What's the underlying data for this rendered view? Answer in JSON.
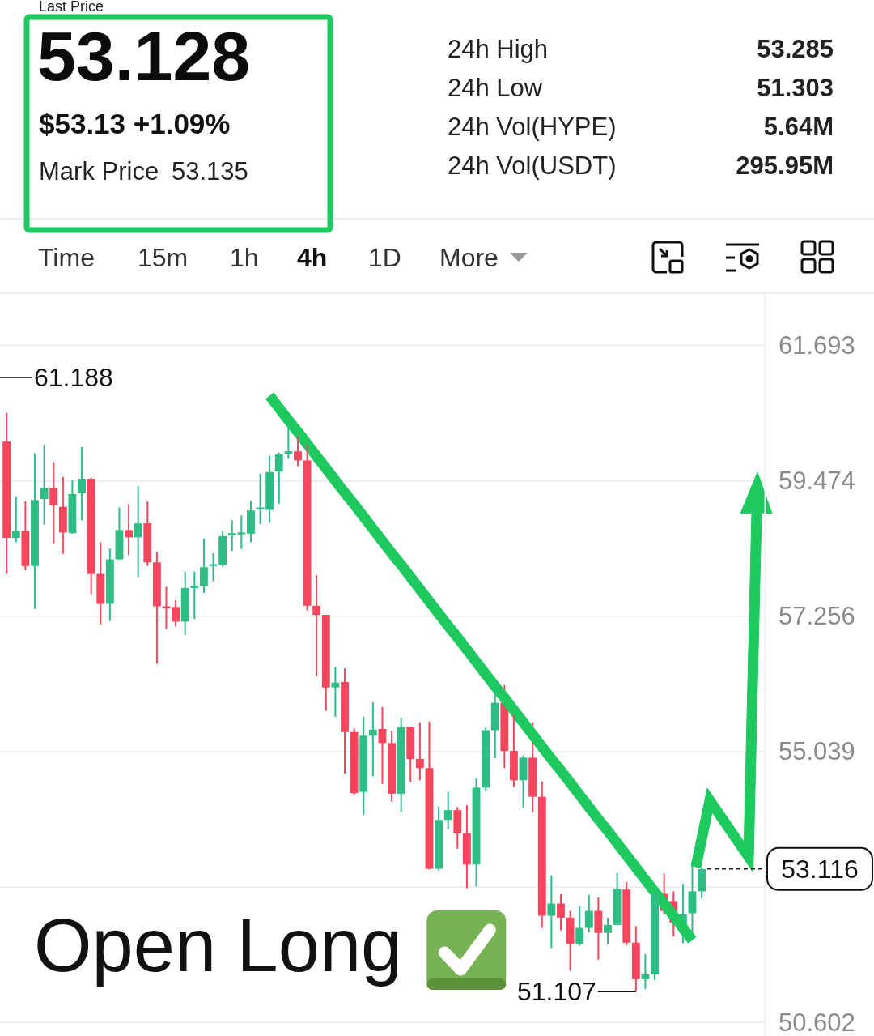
{
  "chart_data": {
    "type": "candlestick",
    "categories": [
      null,
      null,
      null,
      null,
      null,
      null,
      null,
      null,
      null,
      null,
      null,
      null,
      null,
      null,
      null,
      null,
      null,
      null,
      null,
      null,
      null,
      null,
      null,
      null,
      null,
      null,
      null,
      null,
      null,
      null,
      null,
      null,
      null,
      null,
      null,
      null,
      null,
      null,
      null,
      null,
      null,
      null,
      null,
      null,
      null,
      null,
      null,
      null,
      null,
      null,
      null,
      null,
      null,
      null,
      null,
      null,
      null,
      null,
      null,
      null,
      null,
      null,
      null,
      null,
      null,
      null,
      null,
      null,
      null,
      null,
      null,
      null,
      null,
      null,
      null
    ],
    "ohlc": [
      [
        60.12,
        60.59,
        57.95,
        58.54
      ],
      [
        58.54,
        59.22,
        58.47,
        58.65
      ],
      [
        58.65,
        59.14,
        58.01,
        58.08
      ],
      [
        58.08,
        59.93,
        57.38,
        59.16
      ],
      [
        59.18,
        60.07,
        58.76,
        59.36
      ],
      [
        59.36,
        59.78,
        58.45,
        59.07
      ],
      [
        59.05,
        59.54,
        58.28,
        58.63
      ],
      [
        58.62,
        59.49,
        58.61,
        59.26
      ],
      [
        59.27,
        60.03,
        58.83,
        59.51
      ],
      [
        59.51,
        59.53,
        57.62,
        57.95
      ],
      [
        57.95,
        58.47,
        57.12,
        57.46
      ],
      [
        57.46,
        58.37,
        57.18,
        58.19
      ],
      [
        58.19,
        59.04,
        58.18,
        58.67
      ],
      [
        58.67,
        59.1,
        58.26,
        58.55
      ],
      [
        58.55,
        59.39,
        57.9,
        58.78
      ],
      [
        58.78,
        59.14,
        58.08,
        58.14
      ],
      [
        58.14,
        58.31,
        56.48,
        57.42
      ],
      [
        57.42,
        57.74,
        57.05,
        57.39
      ],
      [
        57.41,
        57.52,
        57.09,
        57.17
      ],
      [
        57.17,
        57.99,
        56.95,
        57.72
      ],
      [
        57.72,
        57.99,
        57.21,
        57.76
      ],
      [
        57.75,
        58.53,
        57.64,
        58.06
      ],
      [
        58.08,
        58.29,
        57.83,
        58.11
      ],
      [
        58.1,
        58.65,
        58.07,
        58.57
      ],
      [
        58.58,
        58.83,
        58.33,
        58.62
      ],
      [
        58.6,
        58.91,
        58.36,
        58.63
      ],
      [
        58.61,
        59.15,
        58.47,
        58.99
      ],
      [
        59.01,
        59.59,
        58.77,
        59.04
      ],
      [
        59.0,
        59.89,
        58.79,
        59.62
      ],
      [
        59.63,
        59.94,
        59.1,
        59.91
      ],
      [
        59.92,
        60.45,
        59.84,
        59.96
      ],
      [
        59.96,
        60.21,
        59.72,
        59.81
      ],
      [
        59.81,
        60.08,
        57.35,
        57.43
      ],
      [
        57.43,
        57.93,
        56.28,
        57.28
      ],
      [
        57.28,
        57.28,
        55.71,
        56.09
      ],
      [
        56.09,
        56.42,
        55.61,
        56.17
      ],
      [
        56.18,
        56.4,
        54.68,
        55.36
      ],
      [
        55.36,
        55.42,
        54.33,
        54.36
      ],
      [
        54.38,
        55.61,
        54.0,
        55.3
      ],
      [
        55.3,
        55.85,
        54.64,
        55.4
      ],
      [
        55.41,
        55.77,
        54.51,
        55.18
      ],
      [
        55.18,
        55.38,
        54.22,
        54.35
      ],
      [
        54.35,
        55.59,
        54.05,
        55.44
      ],
      [
        55.44,
        55.45,
        54.54,
        54.92
      ],
      [
        54.92,
        55.52,
        54.57,
        54.77
      ],
      [
        54.77,
        55.53,
        53.11,
        53.12
      ],
      [
        53.12,
        54.14,
        53.09,
        53.92
      ],
      [
        53.92,
        54.38,
        53.77,
        54.08
      ],
      [
        54.08,
        54.13,
        53.45,
        53.7
      ],
      [
        53.7,
        54.16,
        52.8,
        53.19
      ],
      [
        53.19,
        54.61,
        52.83,
        54.45
      ],
      [
        54.45,
        55.43,
        54.39,
        55.39
      ],
      [
        55.39,
        56.07,
        54.93,
        55.84
      ],
      [
        55.84,
        56.13,
        54.77,
        55.05
      ],
      [
        55.05,
        55.64,
        54.46,
        54.57
      ],
      [
        54.57,
        54.98,
        54.12,
        54.94
      ],
      [
        54.94,
        55.52,
        54.04,
        54.3
      ],
      [
        54.3,
        54.55,
        52.15,
        52.35
      ],
      [
        52.35,
        53.01,
        51.82,
        52.55
      ],
      [
        52.55,
        52.7,
        52.11,
        52.32
      ],
      [
        52.32,
        52.43,
        51.45,
        51.89
      ],
      [
        51.89,
        52.51,
        51.86,
        52.15
      ],
      [
        52.15,
        52.69,
        52.08,
        52.43
      ],
      [
        52.43,
        52.65,
        51.63,
        52.07
      ],
      [
        52.07,
        52.32,
        51.89,
        52.2
      ],
      [
        52.2,
        53.05,
        52.2,
        52.79
      ],
      [
        52.78,
        52.9,
        51.87,
        51.91
      ],
      [
        51.91,
        52.18,
        51.107,
        51.31
      ],
      [
        51.31,
        51.72,
        51.15,
        51.39
      ],
      [
        51.39,
        52.72,
        51.3,
        52.71
      ],
      [
        52.71,
        53.04,
        52.38,
        52.43
      ],
      [
        52.59,
        52.75,
        52.01,
        52.24
      ],
      [
        52.18,
        52.87,
        51.9,
        52.37
      ],
      [
        52.39,
        53.24,
        52.04,
        52.75
      ],
      [
        52.75,
        53.14,
        52.64,
        53.116
      ]
    ],
    "colors": [
      "#f6465d",
      "#2ebd85",
      "#f6465d",
      "#2ebd85",
      "#2ebd85",
      "#f6465d",
      "#f6465d",
      "#2ebd85",
      "#2ebd85",
      "#f6465d",
      "#f6465d",
      "#2ebd85",
      "#2ebd85",
      "#f6465d",
      "#2ebd85",
      "#f6465d",
      "#f6465d",
      "#f6465d",
      "#f6465d",
      "#2ebd85",
      "#2ebd85",
      "#2ebd85",
      "#2ebd85",
      "#2ebd85",
      "#2ebd85",
      "#2ebd85",
      "#2ebd85",
      "#2ebd85",
      "#2ebd85",
      "#2ebd85",
      "#2ebd85",
      "#f6465d",
      "#f6465d",
      "#f6465d",
      "#f6465d",
      "#2ebd85",
      "#f6465d",
      "#f6465d",
      "#2ebd85",
      "#2ebd85",
      "#f6465d",
      "#f6465d",
      "#2ebd85",
      "#f6465d",
      "#f6465d",
      "#f6465d",
      "#2ebd85",
      "#2ebd85",
      "#f6465d",
      "#f6465d",
      "#2ebd85",
      "#2ebd85",
      "#2ebd85",
      "#f6465d",
      "#f6465d",
      "#2ebd85",
      "#f6465d",
      "#f6465d",
      "#2ebd85",
      "#f6465d",
      "#f6465d",
      "#2ebd85",
      "#2ebd85",
      "#f6465d",
      "#2ebd85",
      "#2ebd85",
      "#f6465d",
      "#f6465d",
      "#2ebd85",
      "#2ebd85",
      "#f6465d",
      "#f6465d",
      "#2ebd85",
      "#2ebd85",
      "#2ebd85"
    ],
    "series": [
      {
        "type": "line",
        "color": "#1ec95f",
        "values": [
          null,
          null,
          null,
          null,
          null,
          null,
          null,
          null,
          null,
          null,
          null,
          null,
          null,
          null,
          null,
          null,
          null,
          null,
          null,
          null,
          null,
          null,
          null,
          null,
          null,
          null,
          null,
          null,
          60.87,
          60.67,
          60.47,
          60.28,
          60.08,
          59.88,
          59.68,
          59.48,
          59.28,
          59.09,
          58.89,
          58.69,
          58.49,
          58.29,
          58.1,
          57.9,
          57.7,
          57.5,
          57.3,
          57.1,
          56.91,
          56.71,
          56.51,
          56.31,
          56.11,
          55.92,
          55.72,
          55.52,
          55.32,
          55.12,
          54.92,
          54.73,
          54.53,
          54.33,
          54.13,
          53.93,
          53.74,
          53.54,
          53.34,
          53.14,
          52.94,
          52.74,
          52.55,
          52.35,
          52.15,
          51.95,
          null
        ]
      }
    ],
    "ylim": [
      50.38,
      62.55
    ],
    "yticks": [
      50.602,
      {
        "value": 52.821,
        "label": null
      },
      55.039,
      57.256,
      59.474,
      61.693
    ],
    "grid": "y",
    "ref_lines": [
      {
        "axis": "y",
        "value": 53.116,
        "label": "53.116",
        "line_style": "dashed"
      }
    ],
    "annotations": [
      "Last Price",
      "53.128",
      "$53.13 +1.09%",
      "Mark Price",
      "53.135",
      "24h High",
      "53.285",
      "24h Low",
      "51.303",
      "24h Vol(HYPE)",
      "5.64M",
      "24h Vol(USDT)",
      "295.95M",
      "Time",
      "15m",
      "1h",
      "4h",
      "1D",
      "More",
      "Open Long",
      "61.188",
      "51.107"
    ]
  }
}
